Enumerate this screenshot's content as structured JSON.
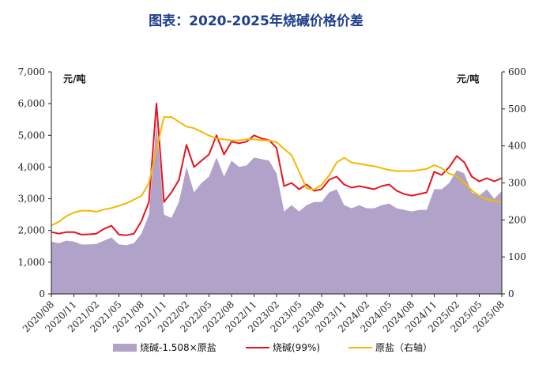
{
  "title": "图表：2020-2025年烧碱价格价差",
  "chart_data": {
    "type": "line",
    "title": "图表：2020-2025年烧碱价格价差",
    "y_left_unit": "元/吨",
    "y_right_unit": "元/吨",
    "y_left_range": [
      0,
      7000
    ],
    "y_left_ticks": [
      "0",
      "1,000",
      "2,000",
      "3,000",
      "4,000",
      "5,000",
      "6,000",
      "7,000"
    ],
    "y_right_range": [
      0,
      600
    ],
    "y_right_ticks": [
      "0",
      "100",
      "200",
      "300",
      "400",
      "500",
      "600"
    ],
    "x_ticks": [
      "2020/08",
      "2020/11",
      "2021/02",
      "2021/05",
      "2021/08",
      "2021/11",
      "2022/02",
      "2022/05",
      "2022/08",
      "2022/11",
      "2023/02",
      "2023/05",
      "2023/08",
      "2023/11",
      "2024/02",
      "2024/05",
      "2024/08",
      "2024/11",
      "2025/02",
      "2025/05",
      "2025/08"
    ],
    "grid": false,
    "legend_position": "bottom",
    "series": [
      {
        "name": "烧碱-1.508×原盐",
        "kind": "area",
        "axis": "left",
        "color": "#b0a2c8",
        "points": [
          [
            "2020/08",
            1650
          ],
          [
            "2020/09",
            1600
          ],
          [
            "2020/10",
            1680
          ],
          [
            "2020/11",
            1650
          ],
          [
            "2020/12",
            1560
          ],
          [
            "2021/01",
            1560
          ],
          [
            "2021/02",
            1580
          ],
          [
            "2021/03",
            1680
          ],
          [
            "2021/04",
            1780
          ],
          [
            "2021/05",
            1560
          ],
          [
            "2021/06",
            1540
          ],
          [
            "2021/07",
            1600
          ],
          [
            "2021/08",
            1900
          ],
          [
            "2021/09",
            2500
          ],
          [
            "2021/10",
            5400
          ],
          [
            "2021/11",
            2500
          ],
          [
            "2021/12",
            2400
          ],
          [
            "2022/01",
            2900
          ],
          [
            "2022/02",
            4000
          ],
          [
            "2022/03",
            3200
          ],
          [
            "2022/04",
            3500
          ],
          [
            "2022/05",
            3700
          ],
          [
            "2022/06",
            4300
          ],
          [
            "2022/07",
            3700
          ],
          [
            "2022/08",
            4200
          ],
          [
            "2022/09",
            4000
          ],
          [
            "2022/10",
            4050
          ],
          [
            "2022/11",
            4300
          ],
          [
            "2022/12",
            4250
          ],
          [
            "2023/01",
            4200
          ],
          [
            "2023/02",
            3800
          ],
          [
            "2023/03",
            2600
          ],
          [
            "2023/04",
            2800
          ],
          [
            "2023/05",
            2600
          ],
          [
            "2023/06",
            2800
          ],
          [
            "2023/07",
            2900
          ],
          [
            "2023/08",
            2900
          ],
          [
            "2023/09",
            3200
          ],
          [
            "2023/10",
            3300
          ],
          [
            "2023/11",
            2800
          ],
          [
            "2023/12",
            2700
          ],
          [
            "2024/01",
            2800
          ],
          [
            "2024/02",
            2700
          ],
          [
            "2024/03",
            2700
          ],
          [
            "2024/04",
            2800
          ],
          [
            "2024/05",
            2850
          ],
          [
            "2024/06",
            2700
          ],
          [
            "2024/07",
            2650
          ],
          [
            "2024/08",
            2600
          ],
          [
            "2024/09",
            2650
          ],
          [
            "2024/10",
            2650
          ],
          [
            "2024/11",
            3300
          ],
          [
            "2024/12",
            3300
          ],
          [
            "2025/01",
            3500
          ],
          [
            "2025/02",
            3900
          ],
          [
            "2025/03",
            3800
          ],
          [
            "2025/04",
            3200
          ],
          [
            "2025/05",
            3100
          ],
          [
            "2025/06",
            3300
          ],
          [
            "2025/07",
            3000
          ],
          [
            "2025/08",
            3250
          ]
        ]
      },
      {
        "name": "烧碱(99%)",
        "kind": "line",
        "axis": "left",
        "color": "#e8131c",
        "points": [
          [
            "2020/08",
            1950
          ],
          [
            "2020/09",
            1900
          ],
          [
            "2020/10",
            1950
          ],
          [
            "2020/11",
            1950
          ],
          [
            "2020/12",
            1870
          ],
          [
            "2021/01",
            1880
          ],
          [
            "2021/02",
            1900
          ],
          [
            "2021/03",
            2050
          ],
          [
            "2021/04",
            2150
          ],
          [
            "2021/05",
            1870
          ],
          [
            "2021/06",
            1850
          ],
          [
            "2021/07",
            1900
          ],
          [
            "2021/08",
            2300
          ],
          [
            "2021/09",
            2900
          ],
          [
            "2021/10",
            6000
          ],
          [
            "2021/11",
            2900
          ],
          [
            "2021/12",
            3200
          ],
          [
            "2022/01",
            3600
          ],
          [
            "2022/02",
            4700
          ],
          [
            "2022/03",
            4000
          ],
          [
            "2022/04",
            4200
          ],
          [
            "2022/05",
            4400
          ],
          [
            "2022/06",
            5000
          ],
          [
            "2022/07",
            4400
          ],
          [
            "2022/08",
            4800
          ],
          [
            "2022/09",
            4750
          ],
          [
            "2022/10",
            4800
          ],
          [
            "2022/11",
            5000
          ],
          [
            "2022/12",
            4900
          ],
          [
            "2023/01",
            4850
          ],
          [
            "2023/02",
            4600
          ],
          [
            "2023/03",
            3400
          ],
          [
            "2023/04",
            3500
          ],
          [
            "2023/05",
            3300
          ],
          [
            "2023/06",
            3450
          ],
          [
            "2023/07",
            3250
          ],
          [
            "2023/08",
            3300
          ],
          [
            "2023/09",
            3600
          ],
          [
            "2023/10",
            3700
          ],
          [
            "2023/11",
            3450
          ],
          [
            "2023/12",
            3350
          ],
          [
            "2024/01",
            3400
          ],
          [
            "2024/02",
            3350
          ],
          [
            "2024/03",
            3300
          ],
          [
            "2024/04",
            3400
          ],
          [
            "2024/05",
            3450
          ],
          [
            "2024/06",
            3250
          ],
          [
            "2024/07",
            3150
          ],
          [
            "2024/08",
            3100
          ],
          [
            "2024/09",
            3150
          ],
          [
            "2024/10",
            3200
          ],
          [
            "2024/11",
            3850
          ],
          [
            "2024/12",
            3750
          ],
          [
            "2025/01",
            4000
          ],
          [
            "2025/02",
            4350
          ],
          [
            "2025/03",
            4150
          ],
          [
            "2025/04",
            3700
          ],
          [
            "2025/05",
            3550
          ],
          [
            "2025/06",
            3650
          ],
          [
            "2025/07",
            3550
          ],
          [
            "2025/08",
            3650
          ]
        ]
      },
      {
        "name": "原盐（右轴）",
        "kind": "line",
        "axis": "right",
        "color": "#f5b800",
        "points": [
          [
            "2020/08",
            185
          ],
          [
            "2020/09",
            195
          ],
          [
            "2020/10",
            210
          ],
          [
            "2020/11",
            220
          ],
          [
            "2020/12",
            225
          ],
          [
            "2021/01",
            225
          ],
          [
            "2021/02",
            222
          ],
          [
            "2021/03",
            228
          ],
          [
            "2021/04",
            232
          ],
          [
            "2021/05",
            238
          ],
          [
            "2021/06",
            245
          ],
          [
            "2021/07",
            255
          ],
          [
            "2021/08",
            265
          ],
          [
            "2021/09",
            300
          ],
          [
            "2021/10",
            390
          ],
          [
            "2021/11",
            478
          ],
          [
            "2021/12",
            478
          ],
          [
            "2022/01",
            465
          ],
          [
            "2022/02",
            452
          ],
          [
            "2022/03",
            448
          ],
          [
            "2022/04",
            438
          ],
          [
            "2022/05",
            428
          ],
          [
            "2022/06",
            420
          ],
          [
            "2022/07",
            418
          ],
          [
            "2022/08",
            415
          ],
          [
            "2022/09",
            415
          ],
          [
            "2022/10",
            418
          ],
          [
            "2022/11",
            418
          ],
          [
            "2022/12",
            415
          ],
          [
            "2023/01",
            415
          ],
          [
            "2023/02",
            410
          ],
          [
            "2023/03",
            392
          ],
          [
            "2023/04",
            375
          ],
          [
            "2023/05",
            330
          ],
          [
            "2023/06",
            285
          ],
          [
            "2023/07",
            282
          ],
          [
            "2023/08",
            295
          ],
          [
            "2023/09",
            320
          ],
          [
            "2023/10",
            355
          ],
          [
            "2023/11",
            368
          ],
          [
            "2023/12",
            355
          ],
          [
            "2024/01",
            352
          ],
          [
            "2024/02",
            348
          ],
          [
            "2024/03",
            345
          ],
          [
            "2024/04",
            340
          ],
          [
            "2024/05",
            335
          ],
          [
            "2024/06",
            332
          ],
          [
            "2024/07",
            332
          ],
          [
            "2024/08",
            332
          ],
          [
            "2024/09",
            335
          ],
          [
            "2024/10",
            338
          ],
          [
            "2024/11",
            348
          ],
          [
            "2024/12",
            340
          ],
          [
            "2025/01",
            325
          ],
          [
            "2025/02",
            318
          ],
          [
            "2025/03",
            300
          ],
          [
            "2025/04",
            280
          ],
          [
            "2025/05",
            265
          ],
          [
            "2025/06",
            255
          ],
          [
            "2025/07",
            252
          ],
          [
            "2025/08",
            248
          ]
        ]
      }
    ]
  }
}
